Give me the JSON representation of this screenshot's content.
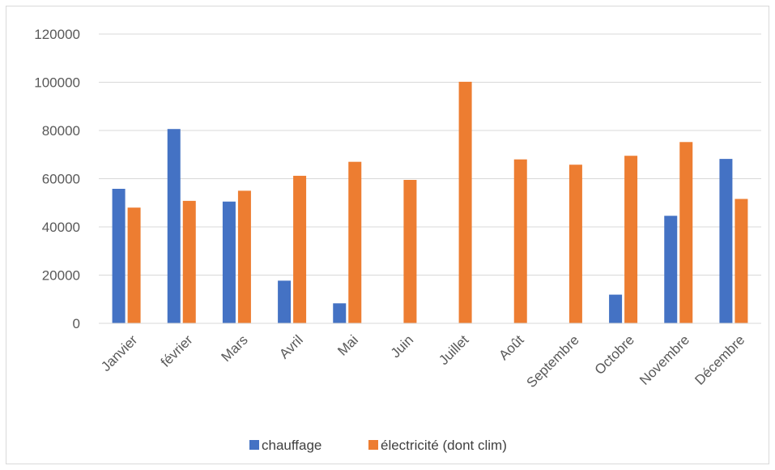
{
  "chart_data": {
    "type": "bar",
    "categories": [
      "Janvier",
      "février",
      "Mars",
      "Avril",
      "Mai",
      "Juin",
      "Juillet",
      "Août",
      "Septembre",
      "Octobre",
      "Novembre",
      "Décembre"
    ],
    "series": [
      {
        "name": "chauffage",
        "color": "#4472c4",
        "values": [
          55800,
          80600,
          50500,
          17700,
          8300,
          0,
          0,
          0,
          0,
          11900,
          44600,
          68200
        ]
      },
      {
        "name": "électricité (dont clim)",
        "color": "#ed7d31",
        "values": [
          48000,
          50800,
          55000,
          61200,
          67000,
          59500,
          100200,
          68000,
          65800,
          69500,
          75200,
          51600
        ]
      }
    ],
    "yticks": [
      "0",
      "20000",
      "40000",
      "60000",
      "80000",
      "100000",
      "120000"
    ],
    "ylim": [
      0,
      120000
    ],
    "grid": true,
    "legend_position": "bottom"
  }
}
